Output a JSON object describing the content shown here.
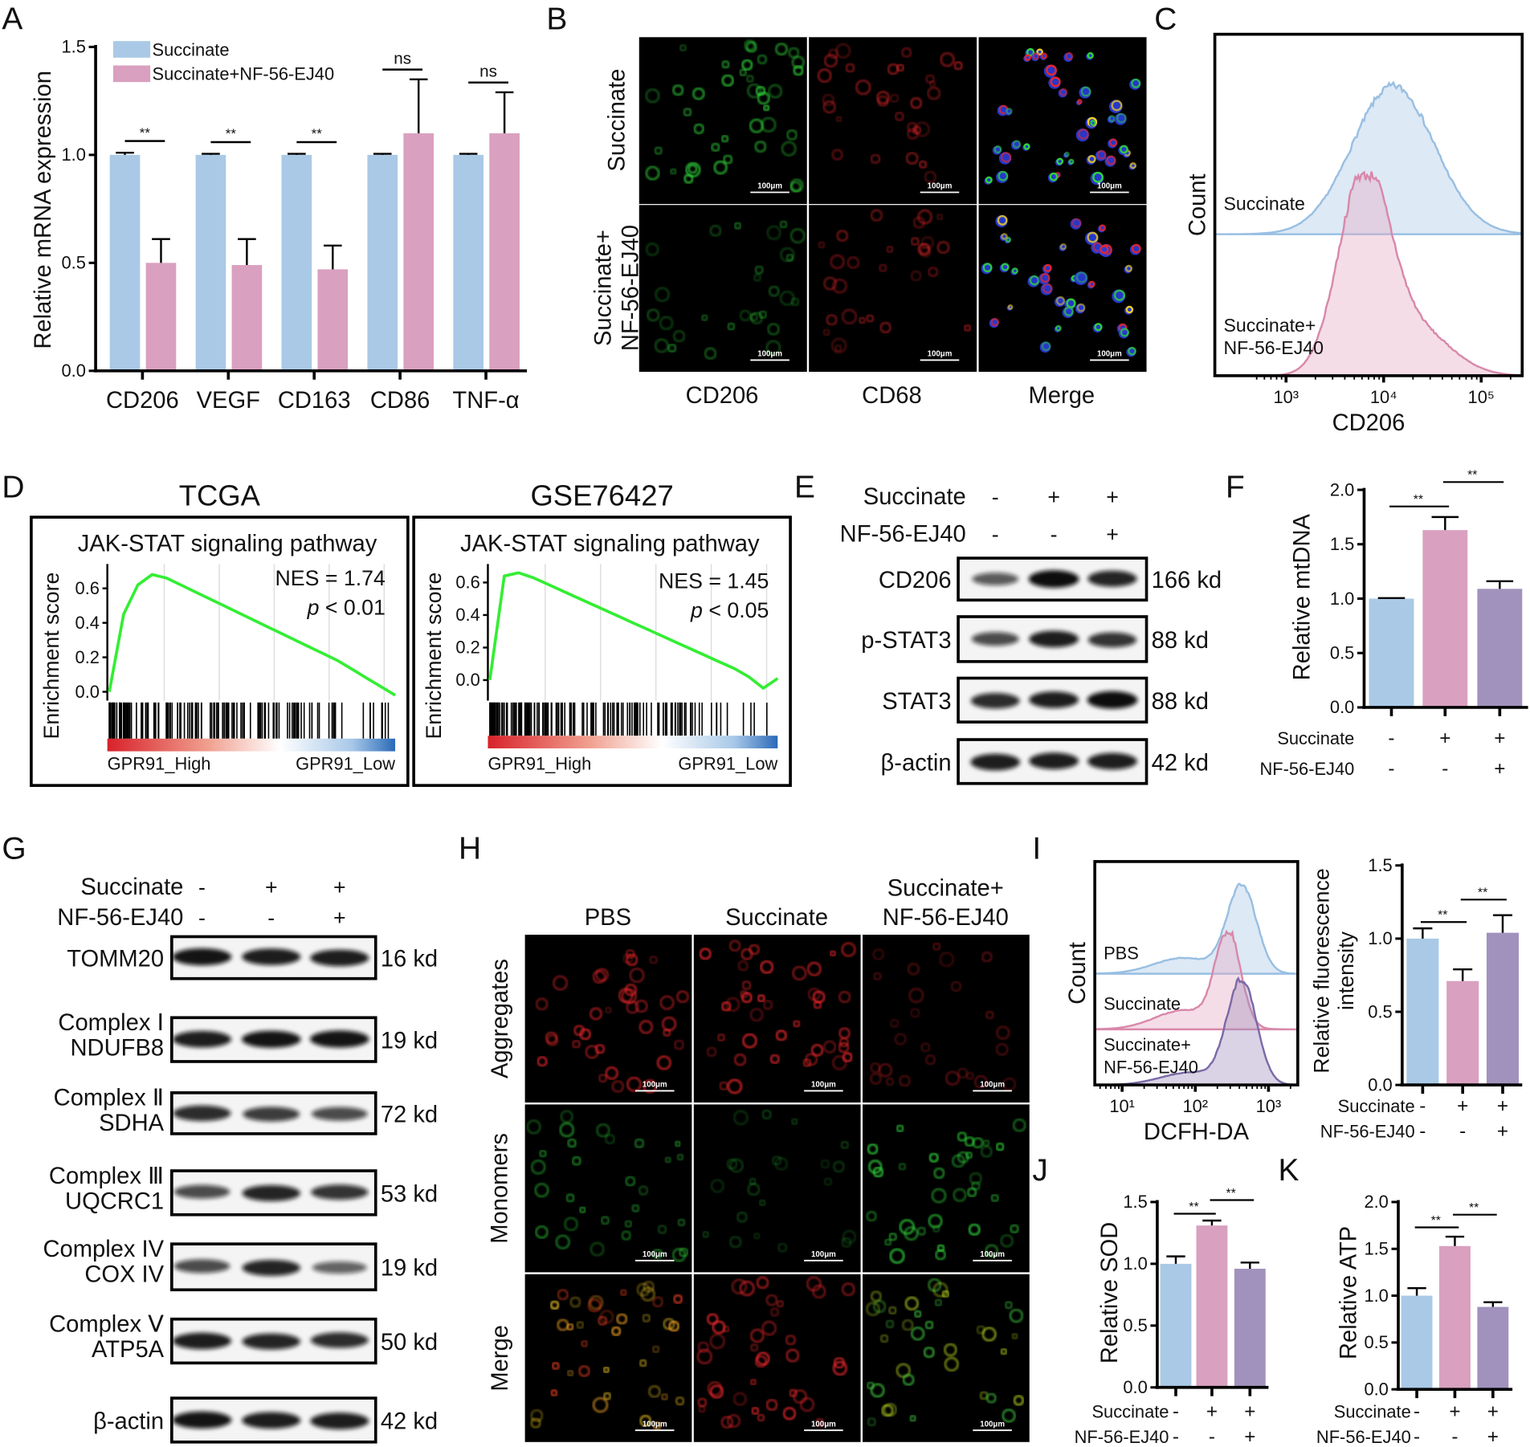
{
  "panel_labels": [
    "A",
    "B",
    "C",
    "D",
    "E",
    "F",
    "G",
    "H",
    "I",
    "J",
    "K"
  ],
  "colors": {
    "succinate": "#a9c9e6",
    "succinate_nf": "#d9a0bf",
    "nf_combo": "#a192bd",
    "gsea_curve": "#33ee33"
  },
  "chart_data": [
    {
      "panel": "A",
      "type": "bar",
      "categories": [
        "CD206",
        "VEGF",
        "CD163",
        "CD86",
        "TNF-α"
      ],
      "series": [
        {
          "name": "Succinate",
          "values": [
            1.0,
            1.0,
            1.0,
            1.0,
            1.0
          ],
          "errors": [
            0.01,
            0.005,
            0.005,
            0.005,
            0.005
          ],
          "color": "#a9c9e6"
        },
        {
          "name": "Succinate+NF-56-EJ40",
          "values": [
            0.5,
            0.49,
            0.47,
            1.1,
            1.1
          ],
          "errors": [
            0.11,
            0.12,
            0.11,
            0.25,
            0.19
          ],
          "color": "#d9a0bf"
        }
      ],
      "significance": [
        "**",
        "**",
        "**",
        "ns",
        "ns"
      ],
      "ylabel": [
        "Relative mRNA expression"
      ],
      "ylim": [
        0,
        1.5
      ],
      "yticks": [
        "0.0",
        "0.5",
        "1.0",
        "1.5"
      ],
      "legend": "top-left",
      "grid": false
    },
    {
      "panel": "F",
      "type": "bar",
      "values": [
        1.0,
        1.63,
        1.09
      ],
      "errors": [
        0.005,
        0.12,
        0.07
      ],
      "colors": [
        "#a9c9e6",
        "#d9a0bf",
        "#a192bd"
      ],
      "conditions": [
        {
          "label": "Succinate",
          "signs": [
            "-",
            "+",
            "+"
          ]
        },
        {
          "label": "NF-56-EJ40",
          "signs": [
            "-",
            "-",
            "+"
          ]
        }
      ],
      "comparisons": [
        {
          "groups": [
            0,
            1
          ],
          "label": "**"
        },
        {
          "groups": [
            1,
            2
          ],
          "label": "**"
        }
      ],
      "ylabel": [
        "Relative mtDNA"
      ],
      "ylim": [
        0,
        2
      ],
      "yticks": [
        "0.0",
        "0.5",
        "1.0",
        "1.5",
        "2.0"
      ],
      "grid": false
    },
    {
      "panel": "I",
      "type": "bar",
      "values": [
        1.0,
        0.71,
        1.04
      ],
      "errors": [
        0.07,
        0.08,
        0.12
      ],
      "colors": [
        "#a9c9e6",
        "#d9a0bf",
        "#a192bd"
      ],
      "conditions": [
        {
          "label": "Succinate",
          "signs": [
            "-",
            "+",
            "+"
          ]
        },
        {
          "label": "NF-56-EJ40",
          "signs": [
            "-",
            "-",
            "+"
          ]
        }
      ],
      "comparisons": [
        {
          "groups": [
            0,
            1
          ],
          "label": "**"
        },
        {
          "groups": [
            1,
            2
          ],
          "label": "**"
        }
      ],
      "ylabel": [
        "Relative fluorescence",
        "intensity"
      ],
      "ylim": [
        0,
        1.5
      ],
      "yticks": [
        "0.0",
        "0.5",
        "1.0",
        "1.5"
      ],
      "grid": false
    },
    {
      "panel": "J",
      "type": "bar",
      "values": [
        1.0,
        1.31,
        0.96
      ],
      "errors": [
        0.06,
        0.04,
        0.05
      ],
      "colors": [
        "#a9c9e6",
        "#d9a0bf",
        "#a192bd"
      ],
      "conditions": [
        {
          "label": "Succinate",
          "signs": [
            "-",
            "+",
            "+"
          ]
        },
        {
          "label": "NF-56-EJ40",
          "signs": [
            "-",
            "-",
            "+"
          ]
        }
      ],
      "comparisons": [
        {
          "groups": [
            0,
            1
          ],
          "label": "**"
        },
        {
          "groups": [
            1,
            2
          ],
          "label": "**"
        }
      ],
      "ylabel": [
        "Relative SOD"
      ],
      "ylim": [
        0,
        1.5
      ],
      "yticks": [
        "0.0",
        "0.5",
        "1.0",
        "1.5"
      ],
      "grid": false
    },
    {
      "panel": "K",
      "type": "bar",
      "values": [
        1.0,
        1.53,
        0.88
      ],
      "errors": [
        0.08,
        0.1,
        0.05
      ],
      "colors": [
        "#a9c9e6",
        "#d9a0bf",
        "#a192bd"
      ],
      "conditions": [
        {
          "label": "Succinate",
          "signs": [
            "-",
            "+",
            "+"
          ]
        },
        {
          "label": "NF-56-EJ40",
          "signs": [
            "-",
            "-",
            "+"
          ]
        }
      ],
      "comparisons": [
        {
          "groups": [
            0,
            1
          ],
          "label": "**"
        },
        {
          "groups": [
            1,
            2
          ],
          "label": "**"
        }
      ],
      "ylabel": [
        "Relative ATP"
      ],
      "ylim": [
        0,
        2
      ],
      "yticks": [
        "0.0",
        "0.5",
        "1.0",
        "1.5",
        "2.0"
      ],
      "grid": false
    },
    {
      "panel": "C",
      "type": "area",
      "scale": "log",
      "xlabel": "CD206",
      "ylabel": "Count",
      "xticks": [
        "10³",
        "10⁴",
        "10⁵"
      ],
      "series": [
        {
          "name": "Succinate",
          "label_lines": [
            "Succinate"
          ],
          "peak": 12600,
          "color": "#a9c9e6"
        },
        {
          "name": "Succinate+NF-56-EJ40",
          "label_lines": [
            "Succinate+",
            "NF-56-EJ40"
          ],
          "peak": 6300,
          "color": "#e7a9c2"
        }
      ]
    },
    {
      "panel": "I",
      "type": "area",
      "scale": "log",
      "xlabel": "DCFH-DA",
      "ylabel": "Count",
      "xticks": [
        "10¹",
        "10²",
        "10³"
      ],
      "series": [
        {
          "name": "PBS",
          "label_lines": [
            "PBS"
          ],
          "peak": 430,
          "color": "#a9c9e6"
        },
        {
          "name": "Succinate",
          "label_lines": [
            "Succinate"
          ],
          "peak": 280,
          "color": "#e7a9c2"
        },
        {
          "name": "Succinate+NF-56-EJ40",
          "label_lines": [
            "Succinate+",
            "NF-56-EJ40"
          ],
          "peak": 430,
          "color": "#a192bd"
        }
      ]
    },
    {
      "panel": "D",
      "type": "line",
      "title": "TCGA",
      "subtitle": "JAK-STAT signaling pathway",
      "ylabel": "Enrichment score",
      "yticks": [
        "0.0",
        "0.2",
        "0.4",
        "0.6"
      ],
      "nes": "NES = 1.74",
      "p_symbol": "p",
      "p_value": "< 0.01",
      "x_labels": [
        "GPR91_High",
        "GPR91_Low"
      ],
      "running_es": [
        0,
        0.45,
        0.62,
        0.68,
        0.66,
        0.62,
        0.58,
        0.54,
        0.5,
        0.46,
        0.42,
        0.38,
        0.34,
        0.3,
        0.26,
        0.22,
        0.18,
        0.13,
        0.08,
        0.03,
        -0.02
      ]
    },
    {
      "panel": "D",
      "type": "line",
      "title": "GSE76427",
      "subtitle": "JAK-STAT signaling pathway",
      "ylabel": "Enrichment score",
      "yticks": [
        "0.0",
        "0.2",
        "0.4",
        "0.6"
      ],
      "nes": "NES = 1.45",
      "p_symbol": "p",
      "p_value": "< 0.05",
      "x_labels": [
        "GPR91_High",
        "GPR91_Low"
      ],
      "running_es": [
        0,
        0.64,
        0.66,
        0.63,
        0.59,
        0.55,
        0.51,
        0.47,
        0.43,
        0.39,
        0.35,
        0.31,
        0.27,
        0.23,
        0.19,
        0.15,
        0.11,
        0.07,
        0.02,
        -0.05,
        0.01
      ]
    }
  ],
  "panel_b": {
    "row_labels": [
      [
        "Succinate"
      ],
      [
        "Succinate+",
        "NF-56-EJ40"
      ]
    ],
    "col_labels": [
      "CD206",
      "CD68",
      "Merge"
    ],
    "scale_bar": "100μm",
    "images": [
      [
        {
          "channel": "green",
          "intensity": 1.0
        },
        {
          "channel": "red",
          "intensity": 0.6
        },
        {
          "channel": "merge",
          "intensity": 1.0
        }
      ],
      [
        {
          "channel": "green",
          "intensity": 0.45
        },
        {
          "channel": "red",
          "intensity": 0.5
        },
        {
          "channel": "merge",
          "intensity": 0.8
        }
      ]
    ]
  },
  "panel_e": {
    "conditions": [
      {
        "label": "Succinate",
        "signs": [
          "-",
          "+",
          "+"
        ]
      },
      {
        "label": "NF-56-EJ40",
        "signs": [
          "-",
          "-",
          "+"
        ]
      }
    ],
    "blots": [
      {
        "label": [
          "CD206"
        ],
        "size": "166 kd",
        "intensity": [
          0.5,
          1.0,
          0.85
        ]
      },
      {
        "label": [
          "p-STAT3"
        ],
        "size": "88 kd",
        "intensity": [
          0.6,
          0.9,
          0.75
        ]
      },
      {
        "label": [
          "STAT3"
        ],
        "size": "88 kd",
        "intensity": [
          0.8,
          0.9,
          1.0
        ]
      },
      {
        "label": [
          "β-actin"
        ],
        "size": "42 kd",
        "intensity": [
          0.9,
          0.9,
          0.9
        ]
      }
    ]
  },
  "panel_g": {
    "conditions": [
      {
        "label": "Succinate",
        "signs": [
          "-",
          "+",
          "+"
        ]
      },
      {
        "label": "NF-56-EJ40",
        "signs": [
          "-",
          "-",
          "+"
        ]
      }
    ],
    "blots": [
      {
        "label": [
          "TOMM20"
        ],
        "size": "16 kd",
        "intensity": [
          0.95,
          0.9,
          0.9
        ]
      },
      {
        "label": [
          "Complex Ⅰ",
          "NDUFB8"
        ],
        "size": "19 kd",
        "intensity": [
          0.9,
          0.95,
          0.95
        ]
      },
      {
        "label": [
          "Complex Ⅱ",
          "SDHA"
        ],
        "size": "72 kd",
        "intensity": [
          0.8,
          0.7,
          0.6
        ]
      },
      {
        "label": [
          "Complex Ⅲ",
          "UQCRC1"
        ],
        "size": "53 kd",
        "intensity": [
          0.6,
          0.85,
          0.75
        ]
      },
      {
        "label": [
          "Complex IV",
          "COX IV"
        ],
        "size": "19 kd",
        "intensity": [
          0.6,
          0.85,
          0.45
        ]
      },
      {
        "label": [
          "Complex Ⅴ",
          "ATP5A"
        ],
        "size": "50 kd",
        "intensity": [
          0.9,
          0.85,
          0.8
        ]
      },
      {
        "label": [
          "β-actin"
        ],
        "size": "42 kd",
        "intensity": [
          0.95,
          0.9,
          0.9
        ]
      }
    ]
  },
  "panel_h": {
    "col_labels": [
      [
        "PBS"
      ],
      [
        "Succinate"
      ],
      [
        "Succinate+",
        "NF-56-EJ40"
      ]
    ],
    "row_labels": [
      "Aggregates",
      "Monomers",
      "Merge"
    ],
    "scale_bar": "100μm",
    "images": [
      [
        {
          "channel": "red",
          "intensity": 0.8
        },
        {
          "channel": "red",
          "intensity": 1.0
        },
        {
          "channel": "red",
          "intensity": 0.35
        }
      ],
      [
        {
          "channel": "green",
          "intensity": 0.6
        },
        {
          "channel": "green",
          "intensity": 0.2
        },
        {
          "channel": "green",
          "intensity": 0.9
        }
      ],
      [
        {
          "channel": "orange",
          "intensity": 0.9
        },
        {
          "channel": "red",
          "intensity": 1.0
        },
        {
          "channel": "yellowgreen",
          "intensity": 0.8
        }
      ]
    ]
  }
}
